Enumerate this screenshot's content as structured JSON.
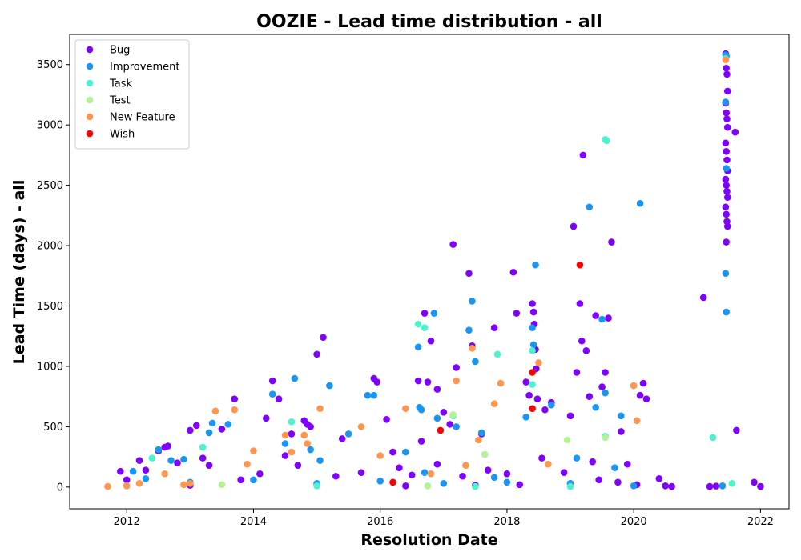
{
  "chart_data": {
    "type": "scatter",
    "title": "OOZIE - Lead time distribution - all",
    "xlabel": "Resolution Date",
    "ylabel": "Lead Time (days) - all",
    "xlim": [
      2011.1,
      2022.45
    ],
    "ylim": [
      -180,
      3750
    ],
    "xticks": [
      2012,
      2014,
      2016,
      2018,
      2020,
      2022
    ],
    "yticks": [
      0,
      500,
      1000,
      1500,
      2000,
      2500,
      3000,
      3500
    ],
    "grid": false,
    "legend_position": "top-left",
    "series": [
      {
        "name": "Bug",
        "color": "#8000ff",
        "points": [
          [
            2011.9,
            130
          ],
          [
            2012.2,
            220
          ],
          [
            2012.5,
            300
          ],
          [
            2012.6,
            330
          ],
          [
            2012.65,
            340
          ],
          [
            2013.0,
            470
          ],
          [
            2013.1,
            510
          ],
          [
            2013.2,
            240
          ],
          [
            2013.5,
            480
          ],
          [
            2013.7,
            730
          ],
          [
            2014.2,
            570
          ],
          [
            2014.3,
            880
          ],
          [
            2014.4,
            730
          ],
          [
            2014.6,
            440
          ],
          [
            2014.8,
            550
          ],
          [
            2014.85,
            520
          ],
          [
            2014.9,
            500
          ],
          [
            2015.0,
            1100
          ],
          [
            2015.1,
            1240
          ],
          [
            2015.4,
            400
          ],
          [
            2015.9,
            900
          ],
          [
            2015.95,
            870
          ],
          [
            2016.1,
            560
          ],
          [
            2016.2,
            290
          ],
          [
            2016.6,
            880
          ],
          [
            2016.7,
            1440
          ],
          [
            2016.75,
            870
          ],
          [
            2016.8,
            1210
          ],
          [
            2016.9,
            810
          ],
          [
            2017.0,
            620
          ],
          [
            2017.1,
            520
          ],
          [
            2017.15,
            2010
          ],
          [
            2017.2,
            990
          ],
          [
            2017.4,
            1770
          ],
          [
            2017.45,
            1170
          ],
          [
            2017.6,
            440
          ],
          [
            2017.8,
            1320
          ],
          [
            2018.1,
            1780
          ],
          [
            2018.15,
            1440
          ],
          [
            2018.3,
            870
          ],
          [
            2018.35,
            760
          ],
          [
            2018.4,
            1520
          ],
          [
            2018.42,
            1450
          ],
          [
            2018.43,
            1350
          ],
          [
            2018.45,
            1140
          ],
          [
            2018.46,
            980
          ],
          [
            2018.48,
            730
          ],
          [
            2018.6,
            640
          ],
          [
            2018.7,
            700
          ],
          [
            2019.0,
            590
          ],
          [
            2019.05,
            2160
          ],
          [
            2019.1,
            950
          ],
          [
            2019.15,
            1520
          ],
          [
            2019.18,
            1210
          ],
          [
            2019.2,
            2750
          ],
          [
            2019.25,
            1130
          ],
          [
            2019.3,
            750
          ],
          [
            2019.4,
            1420
          ],
          [
            2019.5,
            830
          ],
          [
            2019.55,
            950
          ],
          [
            2019.6,
            1400
          ],
          [
            2019.65,
            2030
          ],
          [
            2019.8,
            460
          ],
          [
            2020.1,
            760
          ],
          [
            2020.15,
            860
          ],
          [
            2020.2,
            730
          ],
          [
            2020.4,
            70
          ],
          [
            2020.5,
            10
          ],
          [
            2020.6,
            5
          ],
          [
            2021.1,
            1570
          ],
          [
            2021.2,
            5
          ],
          [
            2021.3,
            8
          ],
          [
            2021.45,
            3590
          ],
          [
            2021.46,
            3470
          ],
          [
            2021.47,
            3420
          ],
          [
            2021.48,
            3280
          ],
          [
            2021.45,
            3180
          ],
          [
            2021.46,
            3100
          ],
          [
            2021.47,
            3050
          ],
          [
            2021.48,
            2980
          ],
          [
            2021.45,
            2850
          ],
          [
            2021.46,
            2780
          ],
          [
            2021.47,
            2710
          ],
          [
            2021.48,
            2620
          ],
          [
            2021.45,
            2550
          ],
          [
            2021.46,
            2500
          ],
          [
            2021.47,
            2450
          ],
          [
            2021.48,
            2400
          ],
          [
            2021.45,
            2320
          ],
          [
            2021.46,
            2260
          ],
          [
            2021.47,
            2200
          ],
          [
            2021.48,
            2160
          ],
          [
            2021.46,
            2030
          ],
          [
            2021.6,
            2940
          ],
          [
            2021.62,
            470
          ],
          [
            2021.9,
            40
          ],
          [
            2022.0,
            5
          ],
          [
            2012.0,
            60
          ],
          [
            2012.3,
            140
          ],
          [
            2012.8,
            200
          ],
          [
            2013.3,
            180
          ],
          [
            2013.8,
            60
          ],
          [
            2014.1,
            110
          ],
          [
            2014.5,
            260
          ],
          [
            2014.7,
            180
          ],
          [
            2015.3,
            90
          ],
          [
            2015.7,
            120
          ],
          [
            2016.3,
            160
          ],
          [
            2016.5,
            100
          ],
          [
            2016.65,
            380
          ],
          [
            2016.9,
            190
          ],
          [
            2017.3,
            90
          ],
          [
            2017.7,
            140
          ],
          [
            2018.0,
            110
          ],
          [
            2018.55,
            240
          ],
          [
            2018.9,
            120
          ],
          [
            2019.35,
            210
          ],
          [
            2019.45,
            60
          ],
          [
            2019.75,
            40
          ],
          [
            2019.9,
            190
          ],
          [
            2020.05,
            20
          ],
          [
            2016.4,
            10
          ],
          [
            2017.5,
            15
          ],
          [
            2018.2,
            20
          ],
          [
            2019.0,
            30
          ],
          [
            2015.0,
            20
          ],
          [
            2013.0,
            15
          ]
        ]
      },
      {
        "name": "Improvement",
        "color": "#1996f3",
        "points": [
          [
            2012.1,
            130
          ],
          [
            2012.5,
            310
          ],
          [
            2012.7,
            220
          ],
          [
            2012.9,
            230
          ],
          [
            2013.3,
            450
          ],
          [
            2013.35,
            530
          ],
          [
            2013.6,
            520
          ],
          [
            2014.3,
            770
          ],
          [
            2014.5,
            360
          ],
          [
            2014.65,
            900
          ],
          [
            2014.9,
            310
          ],
          [
            2015.05,
            220
          ],
          [
            2015.2,
            840
          ],
          [
            2015.5,
            440
          ],
          [
            2015.8,
            760
          ],
          [
            2015.9,
            760
          ],
          [
            2016.4,
            290
          ],
          [
            2016.6,
            1160
          ],
          [
            2016.62,
            660
          ],
          [
            2016.65,
            640
          ],
          [
            2016.85,
            1440
          ],
          [
            2016.9,
            570
          ],
          [
            2017.2,
            500
          ],
          [
            2017.4,
            1300
          ],
          [
            2017.45,
            1540
          ],
          [
            2017.5,
            1040
          ],
          [
            2017.6,
            450
          ],
          [
            2018.3,
            580
          ],
          [
            2018.4,
            1320
          ],
          [
            2018.42,
            1180
          ],
          [
            2018.45,
            1840
          ],
          [
            2018.7,
            680
          ],
          [
            2019.1,
            240
          ],
          [
            2019.3,
            2320
          ],
          [
            2019.4,
            660
          ],
          [
            2019.5,
            1390
          ],
          [
            2019.55,
            780
          ],
          [
            2019.7,
            160
          ],
          [
            2019.8,
            590
          ],
          [
            2020.1,
            2350
          ],
          [
            2021.4,
            10
          ],
          [
            2021.45,
            3580
          ],
          [
            2021.46,
            3570
          ],
          [
            2021.45,
            3190
          ],
          [
            2021.46,
            2640
          ],
          [
            2021.45,
            1770
          ],
          [
            2021.46,
            1450
          ],
          [
            2012.3,
            70
          ],
          [
            2013.0,
            40
          ],
          [
            2014.0,
            60
          ],
          [
            2015.0,
            30
          ],
          [
            2016.0,
            50
          ],
          [
            2017.0,
            30
          ],
          [
            2018.0,
            40
          ],
          [
            2019.0,
            30
          ],
          [
            2020.0,
            10
          ],
          [
            2016.7,
            120
          ],
          [
            2017.8,
            80
          ]
        ]
      },
      {
        "name": "Task",
        "color": "#4df3ce",
        "points": [
          [
            2012.4,
            240
          ],
          [
            2013.2,
            330
          ],
          [
            2014.6,
            540
          ],
          [
            2016.6,
            1350
          ],
          [
            2016.7,
            1320
          ],
          [
            2017.15,
            590
          ],
          [
            2017.85,
            1100
          ],
          [
            2018.4,
            1130
          ],
          [
            2018.4,
            850
          ],
          [
            2019.55,
            2880
          ],
          [
            2019.57,
            2870
          ],
          [
            2019.55,
            420
          ],
          [
            2021.25,
            410
          ],
          [
            2021.45,
            3550
          ],
          [
            2021.55,
            30
          ],
          [
            2012.0,
            10
          ],
          [
            2015.0,
            10
          ],
          [
            2017.5,
            5
          ],
          [
            2019.0,
            5
          ]
        ]
      },
      {
        "name": "Test",
        "color": "#b3f396",
        "points": [
          [
            2017.15,
            600
          ],
          [
            2017.65,
            270
          ],
          [
            2018.95,
            390
          ],
          [
            2019.55,
            410
          ],
          [
            2016.75,
            10
          ],
          [
            2013.5,
            20
          ]
        ]
      },
      {
        "name": "New Feature",
        "color": "#ff964f",
        "points": [
          [
            2011.7,
            5
          ],
          [
            2012.0,
            10
          ],
          [
            2012.2,
            30
          ],
          [
            2012.6,
            110
          ],
          [
            2012.9,
            20
          ],
          [
            2013.4,
            630
          ],
          [
            2013.7,
            640
          ],
          [
            2013.9,
            190
          ],
          [
            2014.0,
            300
          ],
          [
            2014.5,
            430
          ],
          [
            2014.6,
            290
          ],
          [
            2014.8,
            430
          ],
          [
            2014.85,
            360
          ],
          [
            2015.05,
            650
          ],
          [
            2015.7,
            500
          ],
          [
            2016.0,
            260
          ],
          [
            2016.4,
            650
          ],
          [
            2017.2,
            880
          ],
          [
            2017.35,
            180
          ],
          [
            2017.45,
            1150
          ],
          [
            2017.55,
            390
          ],
          [
            2017.9,
            860
          ],
          [
            2017.8,
            690
          ],
          [
            2018.5,
            1030
          ],
          [
            2018.65,
            190
          ],
          [
            2020.0,
            840
          ],
          [
            2020.05,
            550
          ],
          [
            2021.45,
            3540
          ],
          [
            2016.8,
            110
          ],
          [
            2013.0,
            30
          ]
        ]
      },
      {
        "name": "Wish",
        "color": "#ff0000",
        "points": [
          [
            2016.2,
            40
          ],
          [
            2016.95,
            470
          ],
          [
            2018.4,
            950
          ],
          [
            2018.4,
            650
          ],
          [
            2019.15,
            1840
          ]
        ]
      }
    ]
  }
}
